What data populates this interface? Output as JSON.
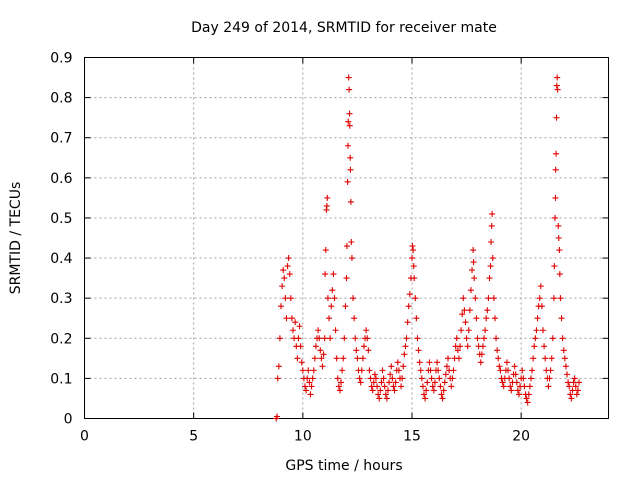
{
  "chart_data": {
    "type": "scatter",
    "title": "Day 249 of 2014, SRMTID for receiver mate",
    "xlabel": "GPS time / hours",
    "ylabel": "SRMTID / TECUs",
    "xlim": [
      0,
      24
    ],
    "ylim": [
      0,
      0.9
    ],
    "x_ticks": [
      "0",
      "5",
      "10",
      "15",
      "20"
    ],
    "y_ticks": [
      "0",
      "0.1",
      "0.2",
      "0.3",
      "0.4",
      "0.5",
      "0.6",
      "0.7",
      "0.8",
      "0.9"
    ],
    "grid": true,
    "marker": "+",
    "color": "#e00000",
    "series": [
      {
        "points": [
          [
            8.78,
            0.0
          ],
          [
            8.82,
            0.005
          ],
          [
            8.85,
            0.1
          ],
          [
            8.9,
            0.13
          ],
          [
            8.95,
            0.2
          ],
          [
            9.0,
            0.28
          ],
          [
            9.05,
            0.33
          ],
          [
            9.1,
            0.37
          ],
          [
            9.15,
            0.35
          ],
          [
            9.2,
            0.3
          ],
          [
            9.25,
            0.25
          ],
          [
            9.3,
            0.38
          ],
          [
            9.35,
            0.4
          ],
          [
            9.4,
            0.36
          ],
          [
            9.45,
            0.3
          ],
          [
            9.5,
            0.25
          ],
          [
            9.55,
            0.22
          ],
          [
            9.6,
            0.2
          ],
          [
            9.65,
            0.24
          ],
          [
            9.7,
            0.18
          ],
          [
            9.75,
            0.15
          ],
          [
            9.8,
            0.2
          ],
          [
            9.85,
            0.23
          ],
          [
            9.9,
            0.18
          ],
          [
            9.95,
            0.14
          ],
          [
            10.0,
            0.12
          ],
          [
            10.05,
            0.1
          ],
          [
            10.1,
            0.08
          ],
          [
            10.15,
            0.07
          ],
          [
            10.2,
            0.1
          ],
          [
            10.25,
            0.12
          ],
          [
            10.3,
            0.09
          ],
          [
            10.35,
            0.06
          ],
          [
            10.4,
            0.08
          ],
          [
            10.45,
            0.1
          ],
          [
            10.5,
            0.12
          ],
          [
            10.55,
            0.15
          ],
          [
            10.6,
            0.18
          ],
          [
            10.65,
            0.2
          ],
          [
            10.7,
            0.22
          ],
          [
            10.75,
            0.2
          ],
          [
            10.8,
            0.17
          ],
          [
            10.85,
            0.15
          ],
          [
            10.9,
            0.13
          ],
          [
            10.95,
            0.16
          ],
          [
            11.0,
            0.2
          ],
          [
            11.02,
            0.36
          ],
          [
            11.05,
            0.42
          ],
          [
            11.08,
            0.52
          ],
          [
            11.1,
            0.53
          ],
          [
            11.12,
            0.55
          ],
          [
            11.15,
            0.3
          ],
          [
            11.2,
            0.25
          ],
          [
            11.25,
            0.2
          ],
          [
            11.3,
            0.28
          ],
          [
            11.35,
            0.32
          ],
          [
            11.4,
            0.36
          ],
          [
            11.45,
            0.3
          ],
          [
            11.5,
            0.22
          ],
          [
            11.55,
            0.15
          ],
          [
            11.6,
            0.1
          ],
          [
            11.65,
            0.08
          ],
          [
            11.7,
            0.07
          ],
          [
            11.75,
            0.09
          ],
          [
            11.8,
            0.12
          ],
          [
            11.85,
            0.15
          ],
          [
            11.9,
            0.2
          ],
          [
            11.95,
            0.28
          ],
          [
            12.0,
            0.35
          ],
          [
            12.02,
            0.43
          ],
          [
            12.05,
            0.59
          ],
          [
            12.07,
            0.68
          ],
          [
            12.08,
            0.74
          ],
          [
            12.1,
            0.85
          ],
          [
            12.12,
            0.82
          ],
          [
            12.14,
            0.76
          ],
          [
            12.15,
            0.73
          ],
          [
            12.17,
            0.65
          ],
          [
            12.18,
            0.62
          ],
          [
            12.2,
            0.54
          ],
          [
            12.22,
            0.44
          ],
          [
            12.25,
            0.4
          ],
          [
            12.3,
            0.3
          ],
          [
            12.35,
            0.25
          ],
          [
            12.4,
            0.2
          ],
          [
            12.45,
            0.17
          ],
          [
            12.5,
            0.15
          ],
          [
            12.55,
            0.12
          ],
          [
            12.6,
            0.1
          ],
          [
            12.65,
            0.09
          ],
          [
            12.7,
            0.12
          ],
          [
            12.75,
            0.15
          ],
          [
            12.8,
            0.18
          ],
          [
            12.85,
            0.2
          ],
          [
            12.9,
            0.22
          ],
          [
            12.95,
            0.2
          ],
          [
            13.0,
            0.17
          ],
          [
            13.05,
            0.12
          ],
          [
            13.1,
            0.1
          ],
          [
            13.15,
            0.08
          ],
          [
            13.2,
            0.07
          ],
          [
            13.25,
            0.09
          ],
          [
            13.3,
            0.11
          ],
          [
            13.35,
            0.1
          ],
          [
            13.4,
            0.08
          ],
          [
            13.45,
            0.06
          ],
          [
            13.5,
            0.05
          ],
          [
            13.55,
            0.07
          ],
          [
            13.6,
            0.09
          ],
          [
            13.65,
            0.12
          ],
          [
            13.7,
            0.1
          ],
          [
            13.75,
            0.08
          ],
          [
            13.8,
            0.06
          ],
          [
            13.85,
            0.05
          ],
          [
            13.9,
            0.07
          ],
          [
            13.95,
            0.09
          ],
          [
            14.0,
            0.11
          ],
          [
            14.05,
            0.13
          ],
          [
            14.1,
            0.1
          ],
          [
            14.15,
            0.08
          ],
          [
            14.2,
            0.07
          ],
          [
            14.25,
            0.09
          ],
          [
            14.3,
            0.12
          ],
          [
            14.35,
            0.14
          ],
          [
            14.4,
            0.12
          ],
          [
            14.45,
            0.1
          ],
          [
            14.5,
            0.08
          ],
          [
            14.55,
            0.1
          ],
          [
            14.6,
            0.13
          ],
          [
            14.65,
            0.16
          ],
          [
            14.7,
            0.18
          ],
          [
            14.75,
            0.2
          ],
          [
            14.8,
            0.24
          ],
          [
            14.85,
            0.28
          ],
          [
            14.9,
            0.31
          ],
          [
            14.95,
            0.35
          ],
          [
            15.0,
            0.4
          ],
          [
            15.02,
            0.43
          ],
          [
            15.05,
            0.42
          ],
          [
            15.08,
            0.38
          ],
          [
            15.1,
            0.35
          ],
          [
            15.15,
            0.3
          ],
          [
            15.2,
            0.25
          ],
          [
            15.25,
            0.2
          ],
          [
            15.3,
            0.17
          ],
          [
            15.35,
            0.14
          ],
          [
            15.4,
            0.12
          ],
          [
            15.45,
            0.1
          ],
          [
            15.5,
            0.08
          ],
          [
            15.55,
            0.06
          ],
          [
            15.6,
            0.05
          ],
          [
            15.65,
            0.07
          ],
          [
            15.7,
            0.09
          ],
          [
            15.75,
            0.12
          ],
          [
            15.8,
            0.14
          ],
          [
            15.85,
            0.12
          ],
          [
            15.9,
            0.1
          ],
          [
            15.95,
            0.08
          ],
          [
            16.0,
            0.07
          ],
          [
            16.05,
            0.09
          ],
          [
            16.1,
            0.12
          ],
          [
            16.15,
            0.14
          ],
          [
            16.2,
            0.12
          ],
          [
            16.25,
            0.1
          ],
          [
            16.3,
            0.08
          ],
          [
            16.35,
            0.06
          ],
          [
            16.4,
            0.05
          ],
          [
            16.45,
            0.07
          ],
          [
            16.5,
            0.09
          ],
          [
            16.55,
            0.11
          ],
          [
            16.6,
            0.13
          ],
          [
            16.65,
            0.15
          ],
          [
            16.7,
            0.12
          ],
          [
            16.75,
            0.1
          ],
          [
            16.8,
            0.08
          ],
          [
            16.85,
            0.1
          ],
          [
            16.9,
            0.12
          ],
          [
            16.95,
            0.15
          ],
          [
            17.0,
            0.18
          ],
          [
            17.05,
            0.2
          ],
          [
            17.1,
            0.17
          ],
          [
            17.15,
            0.15
          ],
          [
            17.2,
            0.18
          ],
          [
            17.25,
            0.22
          ],
          [
            17.3,
            0.26
          ],
          [
            17.35,
            0.3
          ],
          [
            17.4,
            0.27
          ],
          [
            17.45,
            0.24
          ],
          [
            17.5,
            0.2
          ],
          [
            17.55,
            0.18
          ],
          [
            17.6,
            0.22
          ],
          [
            17.65,
            0.27
          ],
          [
            17.7,
            0.32
          ],
          [
            17.75,
            0.37
          ],
          [
            17.8,
            0.42
          ],
          [
            17.82,
            0.39
          ],
          [
            17.85,
            0.35
          ],
          [
            17.9,
            0.3
          ],
          [
            17.95,
            0.25
          ],
          [
            18.0,
            0.2
          ],
          [
            18.05,
            0.18
          ],
          [
            18.1,
            0.16
          ],
          [
            18.15,
            0.14
          ],
          [
            18.2,
            0.16
          ],
          [
            18.25,
            0.18
          ],
          [
            18.3,
            0.2
          ],
          [
            18.35,
            0.22
          ],
          [
            18.4,
            0.25
          ],
          [
            18.45,
            0.27
          ],
          [
            18.5,
            0.3
          ],
          [
            18.55,
            0.35
          ],
          [
            18.6,
            0.38
          ],
          [
            18.62,
            0.44
          ],
          [
            18.65,
            0.48
          ],
          [
            18.67,
            0.51
          ],
          [
            18.7,
            0.4
          ],
          [
            18.75,
            0.3
          ],
          [
            18.8,
            0.25
          ],
          [
            18.85,
            0.2
          ],
          [
            18.9,
            0.17
          ],
          [
            18.95,
            0.15
          ],
          [
            19.0,
            0.13
          ],
          [
            19.05,
            0.12
          ],
          [
            19.1,
            0.1
          ],
          [
            19.15,
            0.09
          ],
          [
            19.2,
            0.08
          ],
          [
            19.25,
            0.1
          ],
          [
            19.3,
            0.12
          ],
          [
            19.35,
            0.14
          ],
          [
            19.4,
            0.12
          ],
          [
            19.45,
            0.1
          ],
          [
            19.5,
            0.08
          ],
          [
            19.55,
            0.07
          ],
          [
            19.6,
            0.09
          ],
          [
            19.65,
            0.11
          ],
          [
            19.7,
            0.13
          ],
          [
            19.75,
            0.11
          ],
          [
            19.8,
            0.09
          ],
          [
            19.85,
            0.07
          ],
          [
            19.9,
            0.06
          ],
          [
            19.95,
            0.08
          ],
          [
            20.0,
            0.1
          ],
          [
            20.05,
            0.12
          ],
          [
            20.1,
            0.1
          ],
          [
            20.15,
            0.08
          ],
          [
            20.2,
            0.06
          ],
          [
            20.25,
            0.05
          ],
          [
            20.3,
            0.04
          ],
          [
            20.35,
            0.06
          ],
          [
            20.4,
            0.08
          ],
          [
            20.45,
            0.1
          ],
          [
            20.5,
            0.12
          ],
          [
            20.55,
            0.15
          ],
          [
            20.6,
            0.18
          ],
          [
            20.65,
            0.2
          ],
          [
            20.7,
            0.22
          ],
          [
            20.75,
            0.25
          ],
          [
            20.8,
            0.28
          ],
          [
            20.85,
            0.3
          ],
          [
            20.9,
            0.33
          ],
          [
            20.95,
            0.28
          ],
          [
            21.0,
            0.22
          ],
          [
            21.05,
            0.18
          ],
          [
            21.1,
            0.15
          ],
          [
            21.15,
            0.12
          ],
          [
            21.2,
            0.1
          ],
          [
            21.25,
            0.08
          ],
          [
            21.3,
            0.1
          ],
          [
            21.35,
            0.12
          ],
          [
            21.4,
            0.15
          ],
          [
            21.45,
            0.2
          ],
          [
            21.5,
            0.3
          ],
          [
            21.52,
            0.38
          ],
          [
            21.55,
            0.5
          ],
          [
            21.57,
            0.55
          ],
          [
            21.58,
            0.62
          ],
          [
            21.6,
            0.66
          ],
          [
            21.62,
            0.75
          ],
          [
            21.63,
            0.83
          ],
          [
            21.65,
            0.85
          ],
          [
            21.67,
            0.82
          ],
          [
            21.7,
            0.48
          ],
          [
            21.72,
            0.45
          ],
          [
            21.75,
            0.42
          ],
          [
            21.77,
            0.36
          ],
          [
            21.8,
            0.3
          ],
          [
            21.85,
            0.25
          ],
          [
            21.9,
            0.2
          ],
          [
            21.95,
            0.17
          ],
          [
            22.0,
            0.15
          ],
          [
            22.05,
            0.13
          ],
          [
            22.1,
            0.11
          ],
          [
            22.15,
            0.09
          ],
          [
            22.2,
            0.08
          ],
          [
            22.25,
            0.06
          ],
          [
            22.3,
            0.05
          ],
          [
            22.35,
            0.07
          ],
          [
            22.4,
            0.09
          ],
          [
            22.45,
            0.1
          ],
          [
            22.5,
            0.08
          ],
          [
            22.55,
            0.06
          ],
          [
            22.6,
            0.07
          ],
          [
            22.65,
            0.09
          ]
        ]
      }
    ]
  }
}
